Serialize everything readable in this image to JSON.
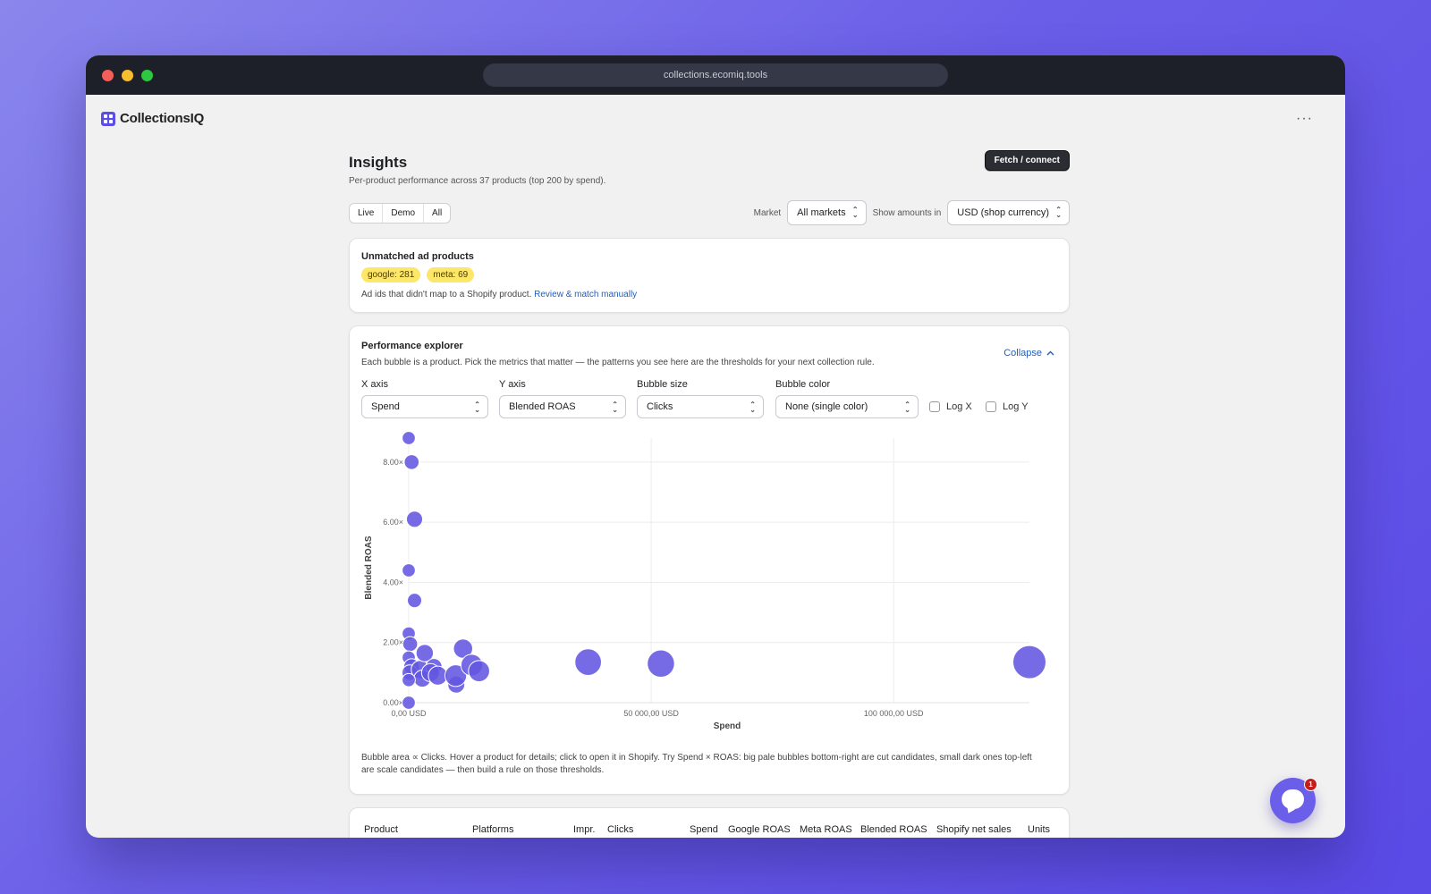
{
  "browser": {
    "url": "collections.ecomiq.tools"
  },
  "app": {
    "name": "CollectionsIQ",
    "more_label": "···"
  },
  "page": {
    "title": "Insights",
    "subtitle": "Per-product performance across 37 products (top 200 by spend).",
    "fetch_label": "Fetch / connect",
    "segments": [
      "Live",
      "Demo",
      "All"
    ],
    "market_label": "Market",
    "market_value": "All markets",
    "amounts_label": "Show amounts in",
    "amounts_value": "USD (shop currency)"
  },
  "unmatched": {
    "title": "Unmatched ad products",
    "badges": [
      "google: 281",
      "meta: 69"
    ],
    "description": "Ad ids that didn't map to a Shopify product.",
    "link": "Review & match manually"
  },
  "explorer": {
    "title": "Performance explorer",
    "description": "Each bubble is a product. Pick the metrics that matter — the patterns you see here are the thresholds for your next collection rule.",
    "collapse_label": "Collapse",
    "x_axis_label": "X axis",
    "x_axis_value": "Spend",
    "y_axis_label": "Y axis",
    "y_axis_value": "Blended ROAS",
    "size_label": "Bubble size",
    "size_value": "Clicks",
    "color_label": "Bubble color",
    "color_value": "None (single color)",
    "log_x": "Log X",
    "log_y": "Log Y",
    "note": "Bubble area ∝ Clicks. Hover a product for details; click to open it in Shopify. Try Spend × ROAS: big pale bubbles bottom-right are cut candidates, small dark ones top-left are scale candidates — then build a rule on those thresholds."
  },
  "table": {
    "headers": [
      "Product",
      "Platforms",
      "Impr.",
      "Clicks",
      "Spend",
      "Google ROAS",
      "Meta ROAS",
      "Blended ROAS",
      "Shopify net sales",
      "Units"
    ]
  },
  "chat": {
    "badge_count": "1"
  },
  "colors": {
    "accent": "#6b5fea",
    "bubble": "#6357e0",
    "link": "#1f5fbf"
  },
  "chart_data": {
    "type": "scatter",
    "xlabel": "Spend",
    "ylabel": "Blended ROAS",
    "xlim": [
      0,
      128000
    ],
    "ylim": [
      0,
      8.8
    ],
    "x_ticks": [
      {
        "value": 0,
        "label": "0,00 USD"
      },
      {
        "value": 50000,
        "label": "50 000,00 USD"
      },
      {
        "value": 100000,
        "label": "100 000,00 USD"
      }
    ],
    "y_ticks": [
      {
        "value": 0,
        "label": "0.00×"
      },
      {
        "value": 2,
        "label": "2.00×"
      },
      {
        "value": 4,
        "label": "4.00×"
      },
      {
        "value": 6,
        "label": "6.00×"
      },
      {
        "value": 8,
        "label": "8.00×"
      }
    ],
    "grid": true,
    "points": [
      {
        "x": 0,
        "y": 8.8,
        "size": 40
      },
      {
        "x": 600,
        "y": 8.0,
        "size": 70
      },
      {
        "x": 1200,
        "y": 6.1,
        "size": 100
      },
      {
        "x": 0,
        "y": 4.4,
        "size": 40
      },
      {
        "x": 1200,
        "y": 3.4,
        "size": 60
      },
      {
        "x": 0,
        "y": 2.3,
        "size": 40
      },
      {
        "x": 300,
        "y": 1.95,
        "size": 70
      },
      {
        "x": 0,
        "y": 1.5,
        "size": 40
      },
      {
        "x": 600,
        "y": 1.2,
        "size": 90
      },
      {
        "x": 200,
        "y": 1.0,
        "size": 80
      },
      {
        "x": 2400,
        "y": 1.1,
        "size": 160
      },
      {
        "x": 3300,
        "y": 1.65,
        "size": 130
      },
      {
        "x": 2800,
        "y": 0.8,
        "size": 120
      },
      {
        "x": 5200,
        "y": 1.2,
        "size": 100
      },
      {
        "x": 4500,
        "y": 1.0,
        "size": 150
      },
      {
        "x": 6000,
        "y": 0.9,
        "size": 180
      },
      {
        "x": 0,
        "y": 0.75,
        "size": 40
      },
      {
        "x": 9800,
        "y": 0.6,
        "size": 120
      },
      {
        "x": 9700,
        "y": 0.9,
        "size": 280
      },
      {
        "x": 11200,
        "y": 1.8,
        "size": 190
      },
      {
        "x": 13000,
        "y": 1.25,
        "size": 280
      },
      {
        "x": 14500,
        "y": 1.05,
        "size": 260
      },
      {
        "x": 0,
        "y": 0.0,
        "size": 40
      },
      {
        "x": 37000,
        "y": 1.35,
        "size": 520
      },
      {
        "x": 52000,
        "y": 1.3,
        "size": 560
      },
      {
        "x": 128000,
        "y": 1.35,
        "size": 950
      }
    ]
  }
}
